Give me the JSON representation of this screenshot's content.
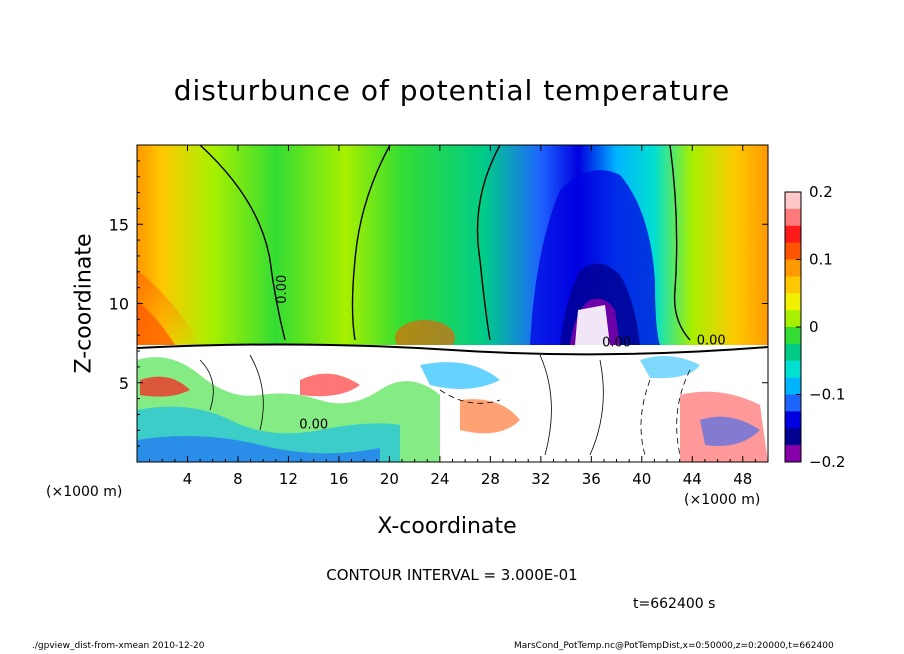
{
  "title": "disturbunce of potential temperature",
  "xunit_left": "(×1000 m)",
  "xunit_right": "(×1000 m)",
  "contour_interval": "CONTOUR INTERVAL = 3.000E-01",
  "time_label": "t=662400 s",
  "footer_left": "./gpview_dist-from-xmean   2010-12-20",
  "footer_right": "MarsCond_PotTemp.nc@PotTempDist,x=0:50000,z=0:20000,t=662400",
  "chart_data": {
    "type": "heatmap",
    "title": "disturbunce of potential temperature",
    "xlabel": "X-coordinate",
    "ylabel": "Z-coordinate",
    "x_units": "(×1000 m)",
    "xlim": [
      0,
      50
    ],
    "ylim": [
      0,
      20
    ],
    "x_ticks": [
      4,
      8,
      12,
      16,
      20,
      24,
      28,
      32,
      36,
      40,
      44,
      48
    ],
    "y_ticks": [
      5,
      10,
      15
    ],
    "colorbar": {
      "range": [
        -0.2,
        0.2
      ],
      "ticks": [
        0.2,
        0.1,
        0,
        -0.1,
        -0.2
      ],
      "tick_labels": [
        "0.2",
        "0.1",
        "0",
        "−0.1",
        "−0.2"
      ],
      "colors": [
        "#ffc8c8",
        "#ff7a7a",
        "#ff1a1a",
        "#ff5500",
        "#ff9900",
        "#ffc800",
        "#f0f000",
        "#a8f000",
        "#33dd33",
        "#00cc88",
        "#00e0d0",
        "#00b4ff",
        "#1e64ff",
        "#0000e0",
        "#000090",
        "#8800aa"
      ]
    },
    "contour_labels": [
      "0.00",
      "0.00",
      "0.00",
      "0.00"
    ],
    "contour_interval": 0.3,
    "time_s": 662400
  }
}
